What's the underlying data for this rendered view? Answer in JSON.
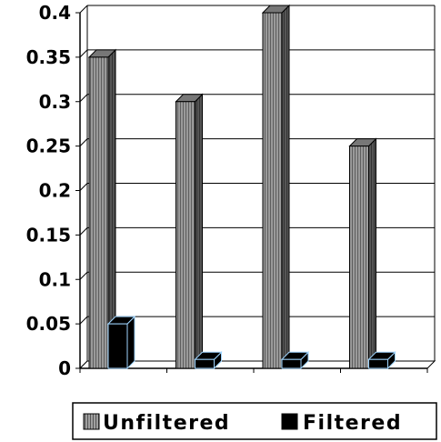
{
  "chart_data": {
    "type": "bar",
    "style": "3d-clustered-column",
    "categories": [
      "",
      "",
      "",
      ""
    ],
    "series": [
      {
        "name": "Unfiltered",
        "values": [
          0.35,
          0.3,
          0.4,
          0.25
        ],
        "color": "#8c8c8c",
        "pattern": "vertical-stripes"
      },
      {
        "name": "Filtered",
        "values": [
          0.05,
          0.01,
          0.01,
          0.01
        ],
        "color": "#000000",
        "pattern": "solid"
      }
    ],
    "yticks": [
      "0",
      "0.05",
      "0.1",
      "0.15",
      "0.2",
      "0.25",
      "0.3",
      "0.35",
      "0.4"
    ],
    "ylim": [
      0,
      0.4
    ],
    "grid": true,
    "legend_position": "bottom",
    "title": "",
    "xlabel": "",
    "ylabel": ""
  }
}
